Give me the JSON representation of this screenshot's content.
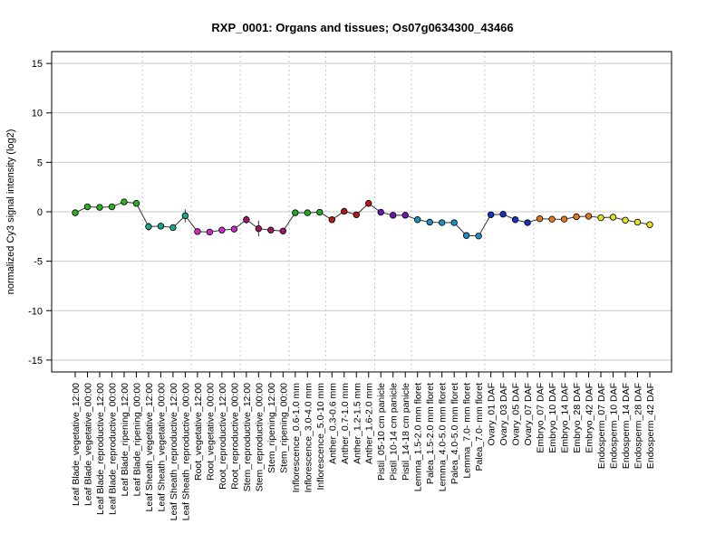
{
  "chart_data": {
    "type": "line",
    "title": "RXP_0001: Organs and tissues; Os07g0634300_43466",
    "xlabel": "",
    "ylabel": "normalized Cy3 signal intensity (log2)",
    "ylim": [
      -16.2,
      16.2
    ],
    "yticks": [
      -15,
      -10,
      -5,
      0,
      5,
      10,
      15
    ],
    "ytick_labels": [
      "-15",
      "-10",
      "-5",
      "0",
      "5",
      "10",
      "15"
    ],
    "grid": "horizontal lines at y ticks; dotted vertical separators between tissue groups",
    "legend": "none",
    "categories": [
      "Leaf Blade_vegetative_12:00",
      "Leaf Blade_vegetative_00:00",
      "Leaf Blade_reproductive_12:00",
      "Leaf Blade_reproductive_00:00",
      "Leaf Blade_ripening_12:00",
      "Leaf Blade_ripening_00:00",
      "Leaf Sheath_vegetative_12:00",
      "Leaf Sheath_vegetative_00:00",
      "Leaf Sheath_reproductive_12:00",
      "Leaf Sheath_reproductive_00:00",
      "Root_vegetative_12:00",
      "Root_vegetative_00:00",
      "Root_reproductive_12:00",
      "Root_reproductive_00:00",
      "Stem_reproductive_12:00",
      "Stem_reproductive_00:00",
      "Stem_ripening_12:00",
      "Stem_ripening_00:00",
      "Inflorescence_0.6-1.0 mm",
      "Inflorescence_3.0-4.0 mm",
      "Inflorescence_5.0-10 mm",
      "Anther_0.3-0.6 mm",
      "Anther_0.7-1.0 mm",
      "Anther_1.2-1.5 mm",
      "Anther_1.6-2.0 mm",
      "Pistil_05-10 cm panicle",
      "Pistil_10-14 cm panicle",
      "Pistil_14-18 cm panicle",
      "Lemma_1.5-2.0 mm floret",
      "Palea_1.5-2.0 mm floret",
      "Lemma_4.0-5.0 mm floret",
      "Palea_4.0-5.0 mm floret",
      "Lemma_7.0- mm floret",
      "Palea_7.0- mm floret",
      "Ovary_01 DAF",
      "Ovary_03 DAF",
      "Ovary_05 DAF",
      "Ovary_07 DAF",
      "Embryo_07 DAF",
      "Embryo_10 DAF",
      "Embryo_14 DAF",
      "Embryo_28 DAF",
      "Embryo_42 DAF",
      "Endosperm_07 DAF",
      "Endosperm_10 DAF",
      "Endosperm_14 DAF",
      "Endosperm_28 DAF",
      "Endosperm_42 DAF"
    ],
    "values": [
      -0.1,
      0.5,
      0.45,
      0.5,
      1.0,
      0.85,
      -1.5,
      -1.45,
      -1.6,
      -0.4,
      -2.0,
      -2.05,
      -1.85,
      -1.75,
      -0.8,
      -1.7,
      -1.85,
      -1.95,
      -0.1,
      -0.1,
      -0.05,
      -0.8,
      0.05,
      -0.3,
      0.85,
      -0.05,
      -0.35,
      -0.35,
      -0.8,
      -1.05,
      -1.1,
      -1.1,
      -2.4,
      -2.45,
      -0.3,
      -0.25,
      -0.8,
      -1.1,
      -0.7,
      -0.75,
      -0.75,
      -0.5,
      -0.45,
      -0.6,
      -0.55,
      -0.85,
      -1.05,
      -1.3
    ],
    "errors": [
      0.05,
      0.1,
      0.3,
      0.1,
      0.1,
      0.15,
      0.4,
      0.15,
      0.15,
      0.65,
      0.25,
      0.3,
      0.2,
      0.15,
      0.4,
      0.8,
      0.15,
      0.1,
      0.1,
      0.05,
      0.05,
      0.1,
      0.15,
      0.2,
      0.25,
      0.1,
      0.2,
      0.15,
      0.15,
      0.1,
      0.1,
      0.1,
      0.15,
      0.15,
      0.1,
      0.1,
      0.2,
      0.2,
      0.1,
      0.1,
      0.1,
      0.1,
      0.1,
      0.1,
      0.1,
      0.15,
      0.1,
      0.1
    ],
    "group_boundaries_after_index": [
      5,
      9,
      13,
      17,
      20,
      24,
      27,
      33,
      37,
      42
    ],
    "point_colors": [
      "#2bb31f",
      "#2bb31f",
      "#2bb31f",
      "#2bb31f",
      "#2bb31f",
      "#2bb31f",
      "#1aa88a",
      "#1aa88a",
      "#1aa88a",
      "#1aa88a",
      "#cc2ccc",
      "#cc2ccc",
      "#cc2ccc",
      "#cc2ccc",
      "#a0166a",
      "#a0166a",
      "#a0166a",
      "#a0166a",
      "#23a828",
      "#23a828",
      "#23a828",
      "#b51818",
      "#b51818",
      "#b51818",
      "#b51818",
      "#6b14b0",
      "#6b14b0",
      "#6b14b0",
      "#1f8fbf",
      "#1f8fbf",
      "#1f8fbf",
      "#1f8fbf",
      "#1f8fbf",
      "#1f8fbf",
      "#1634c4",
      "#1634c4",
      "#1634c4",
      "#1634c4",
      "#e0791c",
      "#e0791c",
      "#e0791c",
      "#e0791c",
      "#e0791c",
      "#e3e31c",
      "#e3e31c",
      "#e3e31c",
      "#e3e31c",
      "#e3e31c"
    ]
  }
}
